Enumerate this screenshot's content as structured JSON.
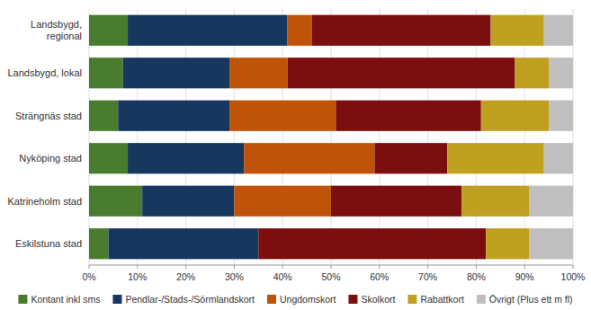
{
  "chart_data": {
    "type": "bar",
    "orientation": "horizontal",
    "stacked": true,
    "categories": [
      "Landsbygd,\nregional",
      "Landsbygd, lokal",
      "Strängnäs stad",
      "Nyköping stad",
      "Katrineholm stad",
      "Eskilstuna stad"
    ],
    "series": [
      {
        "name": "Kontant inkl sms",
        "color": "#4a7c2f",
        "values": [
          8,
          7,
          6,
          8,
          11,
          4
        ]
      },
      {
        "name": "Pendlar-/Stads-/Sörmlandskort",
        "color": "#17375e",
        "values": [
          33,
          22,
          23,
          24,
          19,
          31
        ]
      },
      {
        "name": "Ungdomskort",
        "color": "#c0530a",
        "values": [
          5,
          12,
          22,
          27,
          20,
          0
        ]
      },
      {
        "name": "Skolkort",
        "color": "#7b0e0e",
        "values": [
          37,
          47,
          30,
          15,
          27,
          47
        ]
      },
      {
        "name": "Rabattkort",
        "color": "#c0a020",
        "values": [
          11,
          7,
          14,
          20,
          14,
          9
        ]
      },
      {
        "name": "Övrigt (Plus ett m fl)",
        "color": "#bfbfbf",
        "values": [
          6,
          5,
          5,
          6,
          9,
          9
        ]
      }
    ],
    "xlim": [
      0,
      100
    ],
    "xticks": [
      {
        "value": 0,
        "label": "0%"
      },
      {
        "value": 10,
        "label": "10%"
      },
      {
        "value": 20,
        "label": "20%"
      },
      {
        "value": 30,
        "label": "30%"
      },
      {
        "value": 40,
        "label": "40%"
      },
      {
        "value": 50,
        "label": "50%"
      },
      {
        "value": 60,
        "label": "60%"
      },
      {
        "value": 70,
        "label": "70%"
      },
      {
        "value": 80,
        "label": "80%"
      },
      {
        "value": 90,
        "label": "90%"
      },
      {
        "value": 100,
        "label": "100%"
      }
    ],
    "grid": true,
    "legend": "bottom"
  }
}
